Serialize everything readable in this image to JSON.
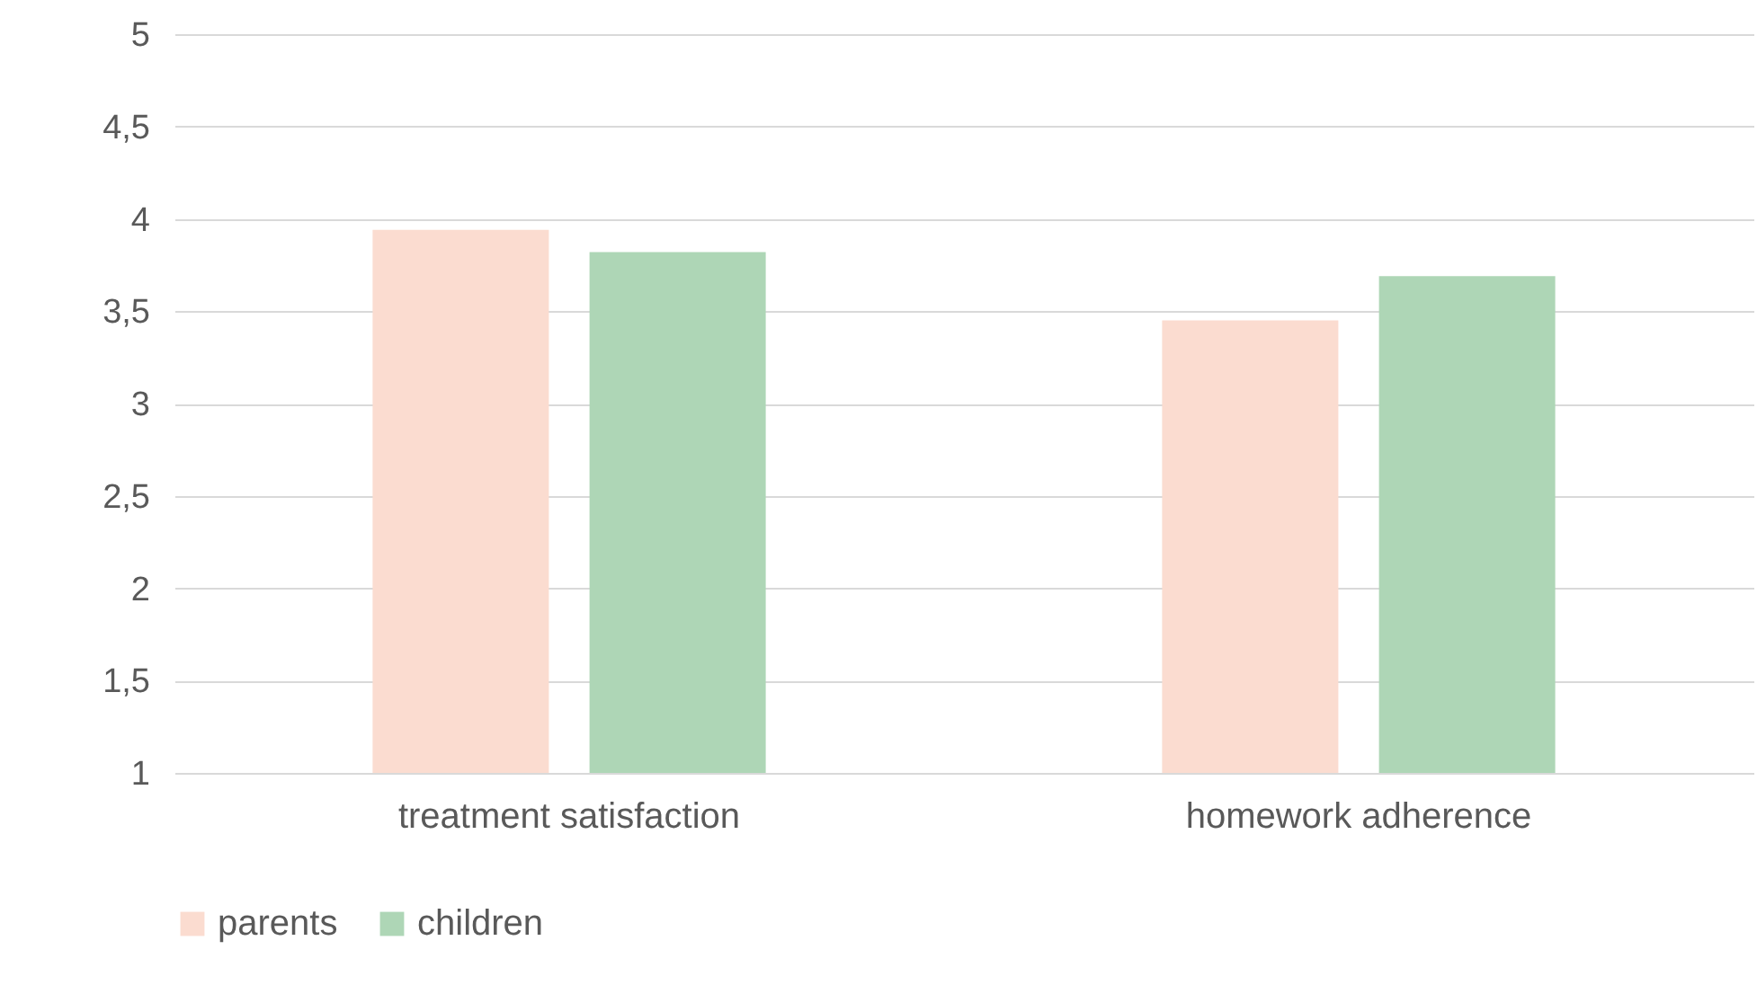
{
  "chart_data": {
    "type": "bar",
    "categories": [
      "treatment satisfaction",
      "homework adherence"
    ],
    "series": [
      {
        "name": "parents",
        "color": "#fbdcd0",
        "values": [
          3.94,
          3.45
        ]
      },
      {
        "name": "children",
        "color": "#aed6b6",
        "values": [
          3.82,
          3.69
        ]
      }
    ],
    "ylim": [
      1,
      5
    ],
    "yticks": [
      1,
      {
        "value": 1.5,
        "label": "1,5"
      },
      2,
      {
        "value": 2.5,
        "label": "2,5"
      },
      3,
      {
        "value": 3.5,
        "label": "3,5"
      },
      4,
      {
        "value": 4.5,
        "label": "4,5"
      },
      5
    ],
    "grid": "y",
    "legend": "bottom"
  }
}
